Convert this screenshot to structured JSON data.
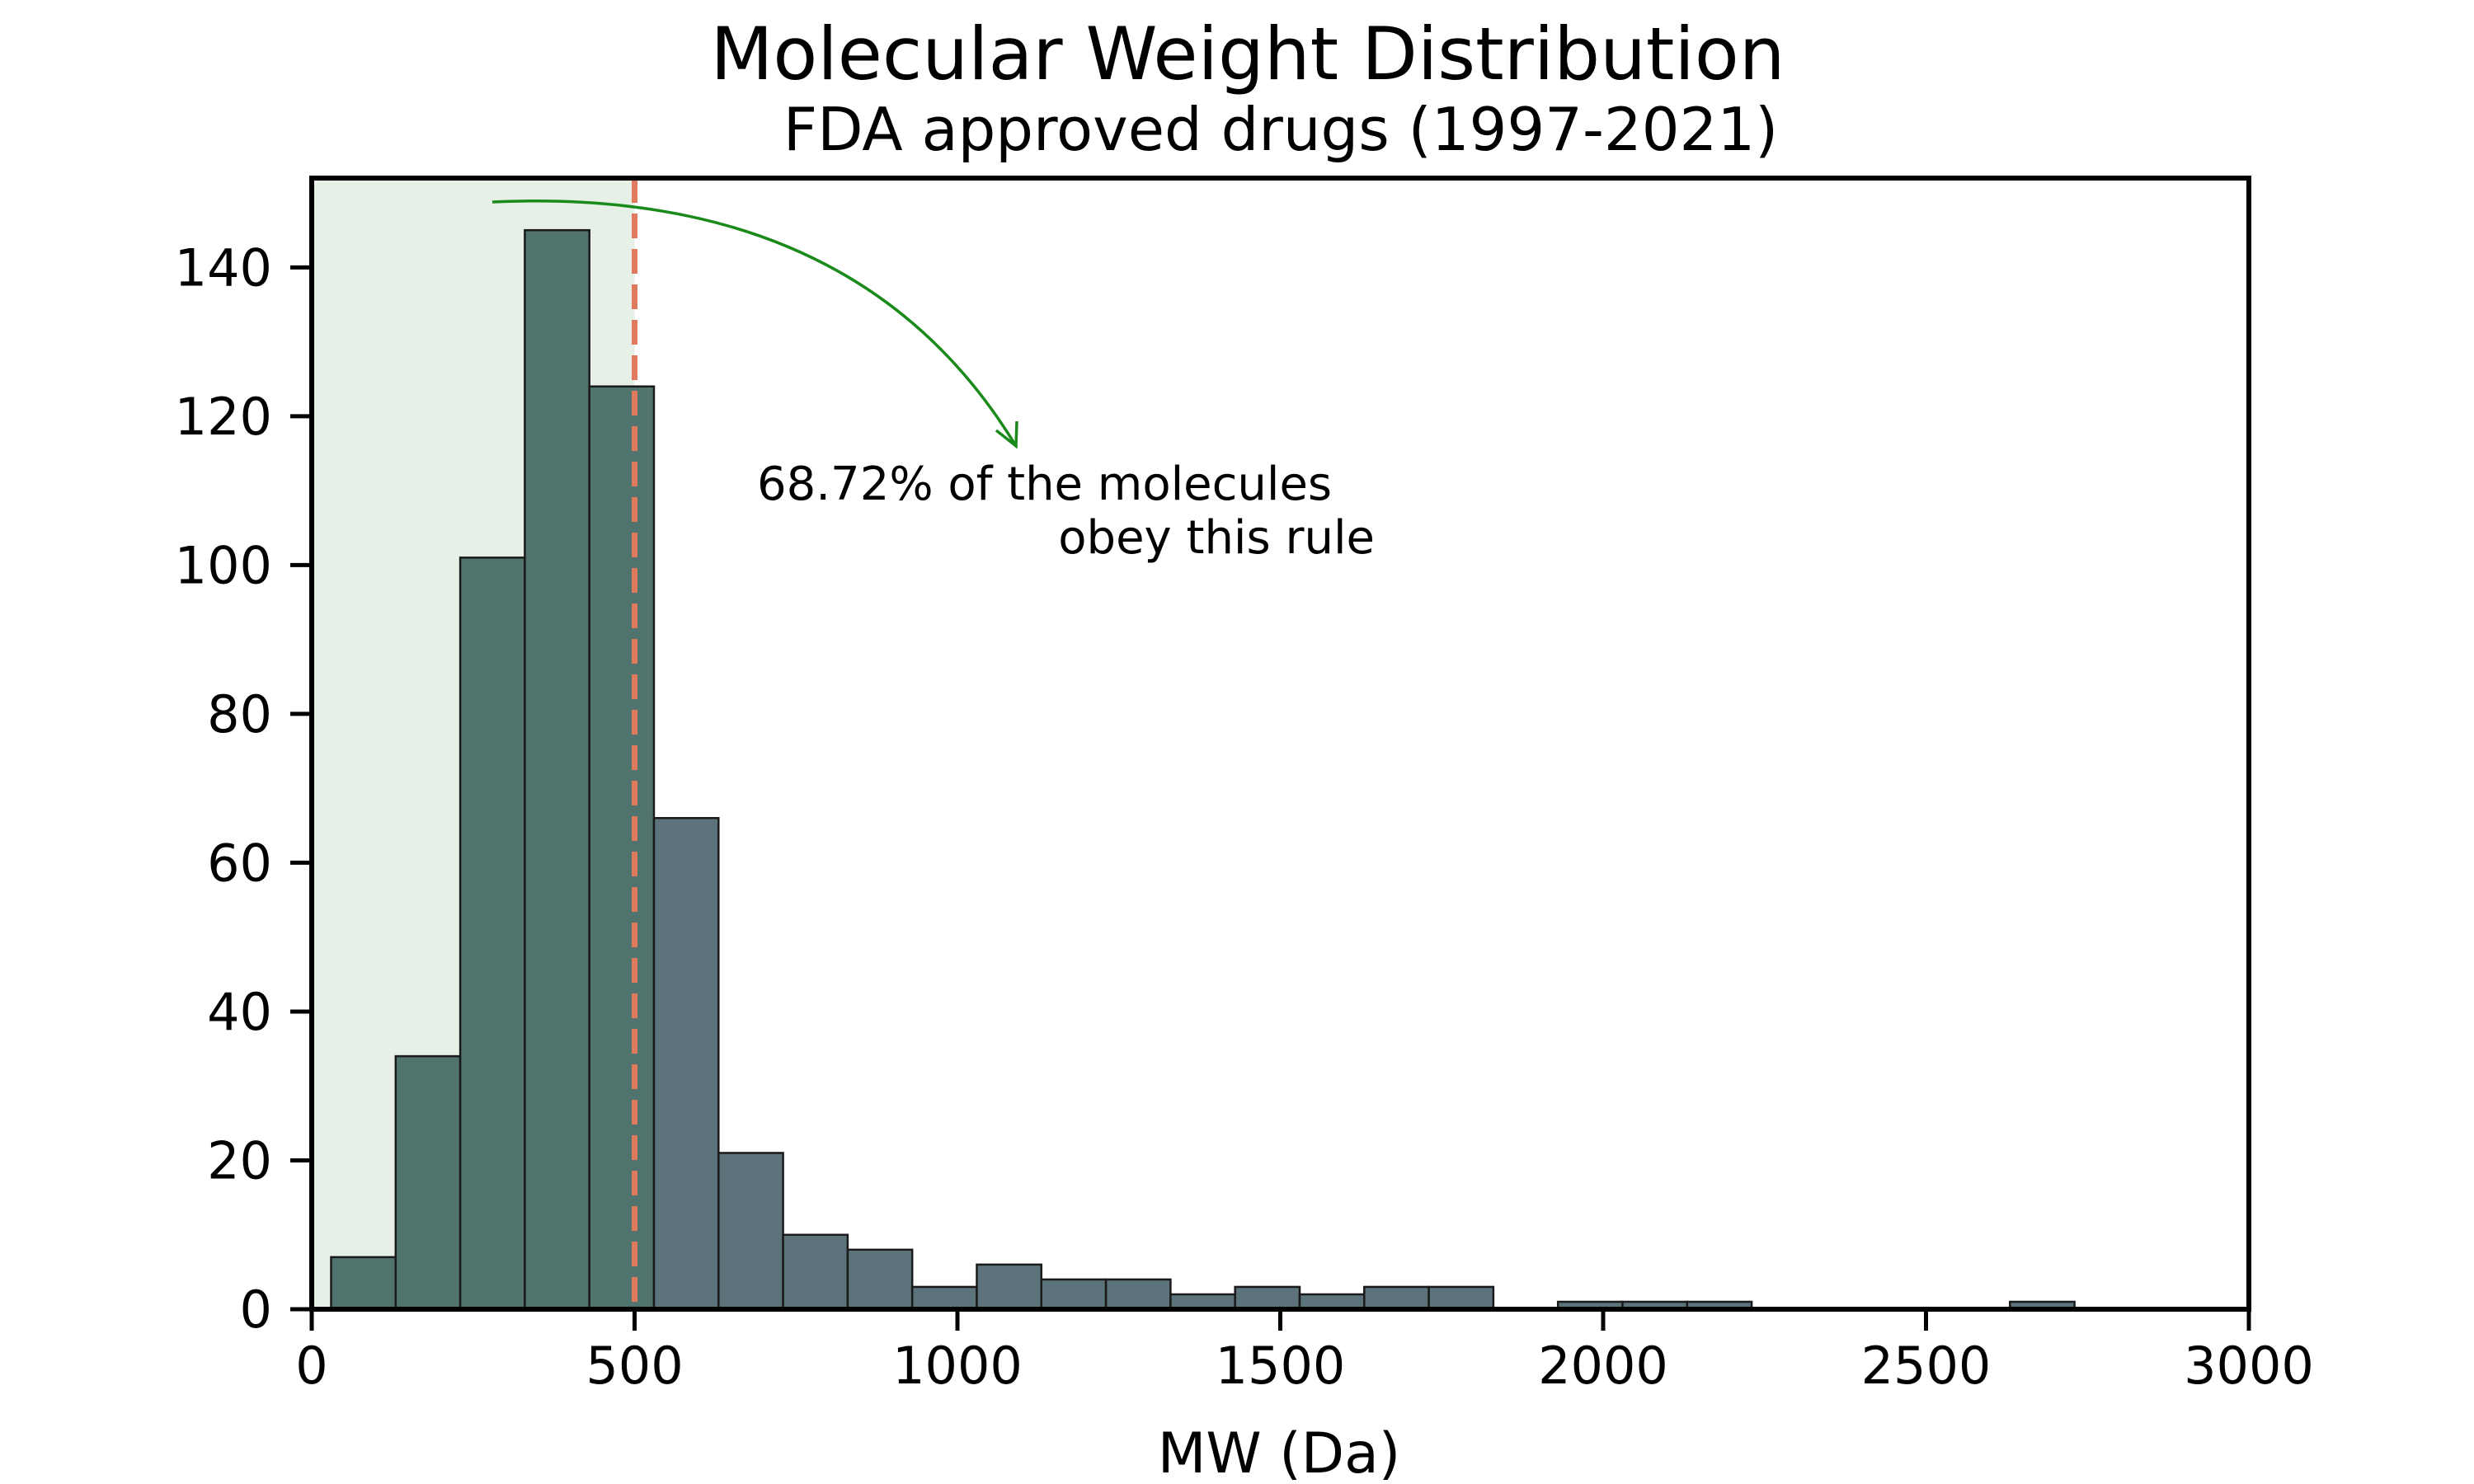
{
  "chart_data": {
    "type": "bar",
    "title": "Molecular Weight Distribution",
    "subtitle": "FDA approved drugs (1997-2021)",
    "xlabel": "MW (Da)",
    "ylabel": "",
    "xlim": [
      0,
      3000
    ],
    "ylim": [
      0,
      152
    ],
    "xticks": [
      0,
      500,
      1000,
      1500,
      2000,
      2500,
      3000
    ],
    "yticks": [
      0,
      20,
      40,
      60,
      80,
      100,
      120,
      140
    ],
    "grid": false,
    "bin_width": 100,
    "bins": [
      {
        "start": 30,
        "count": 7
      },
      {
        "start": 130,
        "count": 34
      },
      {
        "start": 230,
        "count": 101
      },
      {
        "start": 330,
        "count": 145
      },
      {
        "start": 430,
        "count": 124
      },
      {
        "start": 530,
        "count": 66
      },
      {
        "start": 630,
        "count": 21
      },
      {
        "start": 730,
        "count": 10
      },
      {
        "start": 830,
        "count": 8
      },
      {
        "start": 930,
        "count": 3
      },
      {
        "start": 1030,
        "count": 6
      },
      {
        "start": 1130,
        "count": 4
      },
      {
        "start": 1230,
        "count": 4
      },
      {
        "start": 1330,
        "count": 2
      },
      {
        "start": 1430,
        "count": 3
      },
      {
        "start": 1530,
        "count": 2
      },
      {
        "start": 1630,
        "count": 3
      },
      {
        "start": 1730,
        "count": 3
      },
      {
        "start": 1930,
        "count": 1
      },
      {
        "start": 2030,
        "count": 1
      },
      {
        "start": 2130,
        "count": 1
      },
      {
        "start": 2630,
        "count": 1
      }
    ],
    "threshold": 500,
    "highlight_range": [
      0,
      500
    ],
    "annotation": {
      "line1": "68.72% of the molecules",
      "line2": "obey this rule"
    },
    "colors": {
      "bar_inside": "#50736e",
      "bar_outside": "#5c737c",
      "bar_edge": "#1a1a1a",
      "highlight_fill": "#e6f0e6",
      "threshold_line": "#e07a5f",
      "arrow": "#1a8a1a"
    }
  }
}
